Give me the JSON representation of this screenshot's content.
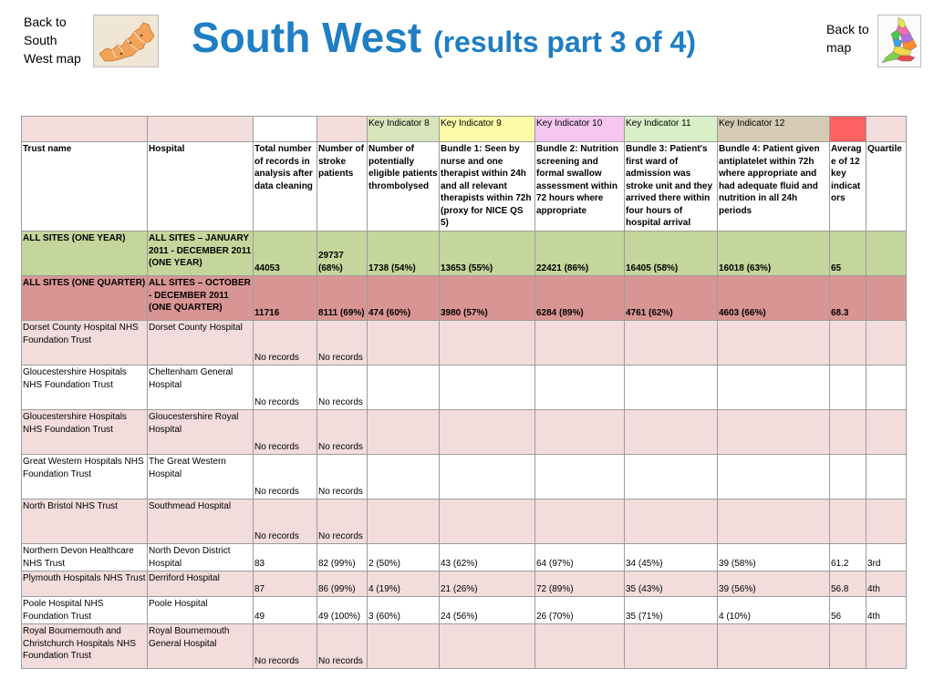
{
  "nav": {
    "back_to_south_west": "Back to South West map",
    "back_to_map": "Back to map"
  },
  "title": {
    "main": "South West",
    "sub": "(results part 3 of 4)"
  },
  "indicator_headers": [
    "Key Indicator 8",
    "Key Indicator 9",
    "Key Indicator 10",
    "Key Indicator 11",
    "Key Indicator 12"
  ],
  "colors": {
    "title": "#1f7ec4",
    "all_year_row": "#c4d69b",
    "all_quarter_row": "#d99594",
    "pink_row": "#f2dddc",
    "indicator_red": "#ff6161"
  },
  "columns": [
    "Trust name",
    "Hospital",
    "Total number of records in analysis after data cleaning",
    "Number of stroke patients",
    "Number of potentially eligible patients thrombolysed",
    "Bundle 1: Seen by nurse and one therapist within 24h and all relevant therapists within 72h (proxy for NICE QS 5)",
    "Bundle 2: Nutrition screening and formal swallow assessment within 72 hours where appropriate",
    "Bundle 3: Patient's first ward of admission was stroke unit and they arrived there within four hours of hospital arrival",
    "Bundle 4: Patient given antiplatelet within 72h where appropriate and had adequate fluid and nutrition in all 24h periods",
    "Average of 12 key indicators",
    "Quartile"
  ],
  "summary_rows": [
    {
      "trust": "ALL SITES (ONE YEAR)",
      "hospital": "ALL SITES – JANUARY 2011 - DECEMBER 2011 (ONE YEAR)",
      "total": "44053",
      "stroke": "29737 (68%)",
      "thrombolysed": "1738 (54%)",
      "bundle1": "13653 (55%)",
      "bundle2": "22421 (86%)",
      "bundle3": "16405 (58%)",
      "bundle4": "16018 (63%)",
      "average": "65",
      "quartile": ""
    },
    {
      "trust": "ALL SITES (ONE QUARTER)",
      "hospital": "ALL SITES – OCTOBER - DECEMBER 2011 (ONE QUARTER)",
      "total": "11716",
      "stroke": "8111 (69%)",
      "thrombolysed": "474 (60%)",
      "bundle1": "3980 (57%)",
      "bundle2": "6284 (89%)",
      "bundle3": "4761 (62%)",
      "bundle4": "4603 (66%)",
      "average": "68.3",
      "quartile": ""
    }
  ],
  "rows": [
    {
      "trust": "Dorset County Hospital NHS Foundation Trust",
      "hospital": "Dorset County Hospital",
      "total": "No records",
      "stroke": "No records",
      "thrombolysed": "",
      "bundle1": "",
      "bundle2": "",
      "bundle3": "",
      "bundle4": "",
      "average": "",
      "quartile": ""
    },
    {
      "trust": "Gloucestershire Hospitals NHS Foundation Trust",
      "hospital": "Cheltenham General Hospital",
      "total": "No records",
      "stroke": "No records",
      "thrombolysed": "",
      "bundle1": "",
      "bundle2": "",
      "bundle3": "",
      "bundle4": "",
      "average": "",
      "quartile": ""
    },
    {
      "trust": "Gloucestershire Hospitals NHS Foundation Trust",
      "hospital": "Gloucestershire Royal Hospital",
      "total": "No records",
      "stroke": "No records",
      "thrombolysed": "",
      "bundle1": "",
      "bundle2": "",
      "bundle3": "",
      "bundle4": "",
      "average": "",
      "quartile": ""
    },
    {
      "trust": "Great Western Hospitals NHS Foundation Trust",
      "hospital": "The Great Western Hospital",
      "total": "No records",
      "stroke": "No records",
      "thrombolysed": "",
      "bundle1": "",
      "bundle2": "",
      "bundle3": "",
      "bundle4": "",
      "average": "",
      "quartile": ""
    },
    {
      "trust": "North Bristol NHS Trust",
      "hospital": "Southmead Hospital",
      "total": "No records",
      "stroke": "No records",
      "thrombolysed": "",
      "bundle1": "",
      "bundle2": "",
      "bundle3": "",
      "bundle4": "",
      "average": "",
      "quartile": ""
    },
    {
      "trust": "Northern Devon Healthcare NHS Trust",
      "hospital": "North Devon District Hospital",
      "total": "83",
      "stroke": "82 (99%)",
      "thrombolysed": "2 (50%)",
      "bundle1": "43 (62%)",
      "bundle2": "64 (97%)",
      "bundle3": "34 (45%)",
      "bundle4": "39 (58%)",
      "average": "61.2",
      "quartile": "3rd"
    },
    {
      "trust": "Plymouth Hospitals NHS Trust",
      "hospital": "Derriford Hospital",
      "total": "87",
      "stroke": "86 (99%)",
      "thrombolysed": "4 (19%)",
      "bundle1": "21 (26%)",
      "bundle2": "72 (89%)",
      "bundle3": "35 (43%)",
      "bundle4": "39 (56%)",
      "average": "56.8",
      "quartile": "4th"
    },
    {
      "trust": "Poole Hospital NHS Foundation Trust",
      "hospital": "Poole Hospital",
      "total": "49",
      "stroke": "49 (100%)",
      "thrombolysed": "3 (60%)",
      "bundle1": "24 (56%)",
      "bundle2": "26 (70%)",
      "bundle3": "35 (71%)",
      "bundle4": "4 (10%)",
      "average": "56",
      "quartile": "4th"
    },
    {
      "trust": "Royal Bournemouth and Christchurch Hospitals NHS Foundation Trust",
      "hospital": "Royal Bournemouth General Hospital",
      "total": "No records",
      "stroke": "No records",
      "thrombolysed": "",
      "bundle1": "",
      "bundle2": "",
      "bundle3": "",
      "bundle4": "",
      "average": "",
      "quartile": ""
    }
  ]
}
